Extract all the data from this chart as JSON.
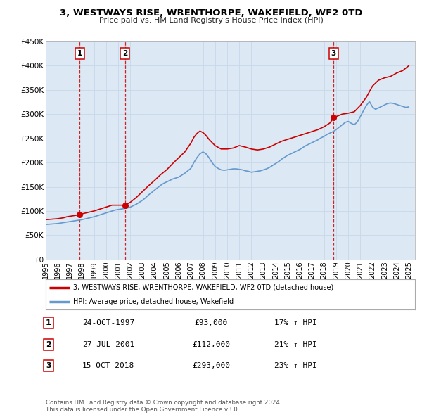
{
  "title": "3, WESTWAYS RISE, WRENTHORPE, WAKEFIELD, WF2 0TD",
  "subtitle": "Price paid vs. HM Land Registry's House Price Index (HPI)",
  "background_color": "#ffffff",
  "plot_bg_color": "#dce9f5",
  "grid_color": "#c8d8e8",
  "xmin": 1995.0,
  "xmax": 2025.5,
  "ymin": 0,
  "ymax": 450000,
  "yticks": [
    0,
    50000,
    100000,
    150000,
    200000,
    250000,
    300000,
    350000,
    400000,
    450000
  ],
  "ytick_labels": [
    "£0",
    "£50K",
    "£100K",
    "£150K",
    "£200K",
    "£250K",
    "£300K",
    "£350K",
    "£400K",
    "£450K"
  ],
  "xticks": [
    1995,
    1996,
    1997,
    1998,
    1999,
    2000,
    2001,
    2002,
    2003,
    2004,
    2005,
    2006,
    2007,
    2008,
    2009,
    2010,
    2011,
    2012,
    2013,
    2014,
    2015,
    2016,
    2017,
    2018,
    2019,
    2020,
    2021,
    2022,
    2023,
    2024,
    2025
  ],
  "sale_dates": [
    1997.81,
    2001.56,
    2018.79
  ],
  "sale_prices": [
    93000,
    112000,
    293000
  ],
  "sale_labels": [
    "1",
    "2",
    "3"
  ],
  "vline_color": "#cc0000",
  "vline_style": "--",
  "sale_dot_color": "#cc0000",
  "label_box_color": "#ffffff",
  "label_box_edge": "#cc0000",
  "legend_label_red": "3, WESTWAYS RISE, WRENTHORPE, WAKEFIELD, WF2 0TD (detached house)",
  "legend_label_blue": "HPI: Average price, detached house, Wakefield",
  "table_rows": [
    {
      "num": "1",
      "date": "24-OCT-1997",
      "price": "£93,000",
      "hpi": "17% ↑ HPI"
    },
    {
      "num": "2",
      "date": "27-JUL-2001",
      "price": "£112,000",
      "hpi": "21% ↑ HPI"
    },
    {
      "num": "3",
      "date": "15-OCT-2018",
      "price": "£293,000",
      "hpi": "23% ↑ HPI"
    }
  ],
  "footer": "Contains HM Land Registry data © Crown copyright and database right 2024.\nThis data is licensed under the Open Government Licence v3.0.",
  "red_line_color": "#cc0000",
  "blue_line_color": "#6699cc",
  "hpi_x": [
    1995.0,
    1995.25,
    1995.5,
    1995.75,
    1996.0,
    1996.25,
    1996.5,
    1996.75,
    1997.0,
    1997.25,
    1997.5,
    1997.75,
    1998.0,
    1998.25,
    1998.5,
    1998.75,
    1999.0,
    1999.25,
    1999.5,
    1999.75,
    2000.0,
    2000.25,
    2000.5,
    2000.75,
    2001.0,
    2001.25,
    2001.5,
    2001.75,
    2002.0,
    2002.25,
    2002.5,
    2002.75,
    2003.0,
    2003.25,
    2003.5,
    2003.75,
    2004.0,
    2004.25,
    2004.5,
    2004.75,
    2005.0,
    2005.25,
    2005.5,
    2005.75,
    2006.0,
    2006.25,
    2006.5,
    2006.75,
    2007.0,
    2007.25,
    2007.5,
    2007.75,
    2008.0,
    2008.25,
    2008.5,
    2008.75,
    2009.0,
    2009.25,
    2009.5,
    2009.75,
    2010.0,
    2010.25,
    2010.5,
    2010.75,
    2011.0,
    2011.25,
    2011.5,
    2011.75,
    2012.0,
    2012.25,
    2012.5,
    2012.75,
    2013.0,
    2013.25,
    2013.5,
    2013.75,
    2014.0,
    2014.25,
    2014.5,
    2014.75,
    2015.0,
    2015.25,
    2015.5,
    2015.75,
    2016.0,
    2016.25,
    2016.5,
    2016.75,
    2017.0,
    2017.25,
    2017.5,
    2017.75,
    2018.0,
    2018.25,
    2018.5,
    2018.75,
    2019.0,
    2019.25,
    2019.5,
    2019.75,
    2020.0,
    2020.25,
    2020.5,
    2020.75,
    2021.0,
    2021.25,
    2021.5,
    2021.75,
    2022.0,
    2022.25,
    2022.5,
    2022.75,
    2023.0,
    2023.25,
    2023.5,
    2023.75,
    2024.0,
    2024.25,
    2024.5,
    2024.75,
    2025.0
  ],
  "hpi_y": [
    72000,
    72500,
    73000,
    73500,
    74000,
    75000,
    76000,
    77000,
    78000,
    79000,
    80000,
    81000,
    82000,
    83500,
    85000,
    86500,
    88000,
    90000,
    92000,
    94000,
    96000,
    98000,
    100000,
    102000,
    103000,
    104000,
    105000,
    106000,
    108000,
    111000,
    114000,
    118000,
    122000,
    127000,
    133000,
    138000,
    143000,
    148000,
    153000,
    157000,
    160000,
    163000,
    166000,
    168000,
    170000,
    174000,
    178000,
    183000,
    188000,
    200000,
    210000,
    218000,
    222000,
    218000,
    210000,
    200000,
    192000,
    188000,
    185000,
    184000,
    185000,
    186000,
    187000,
    187000,
    186000,
    185000,
    183000,
    182000,
    180000,
    181000,
    182000,
    183000,
    185000,
    187000,
    190000,
    194000,
    198000,
    202000,
    207000,
    211000,
    215000,
    218000,
    221000,
    224000,
    227000,
    231000,
    235000,
    238000,
    241000,
    244000,
    247000,
    251000,
    254000,
    258000,
    261000,
    264000,
    268000,
    273000,
    278000,
    283000,
    285000,
    281000,
    278000,
    284000,
    295000,
    307000,
    318000,
    326000,
    315000,
    310000,
    313000,
    316000,
    319000,
    322000,
    323000,
    322000,
    320000,
    318000,
    316000,
    314000,
    315000
  ],
  "red_x": [
    1995.0,
    1995.25,
    1995.5,
    1995.75,
    1996.0,
    1996.25,
    1996.5,
    1996.75,
    1997.0,
    1997.25,
    1997.5,
    1997.75,
    1997.81,
    1998.0,
    1998.5,
    1999.0,
    1999.5,
    2000.0,
    2000.5,
    2001.0,
    2001.5,
    2001.56,
    2002.0,
    2002.5,
    2003.0,
    2003.5,
    2004.0,
    2004.5,
    2005.0,
    2005.5,
    2006.0,
    2006.5,
    2007.0,
    2007.25,
    2007.5,
    2007.75,
    2008.0,
    2008.25,
    2008.5,
    2009.0,
    2009.5,
    2010.0,
    2010.5,
    2011.0,
    2011.5,
    2012.0,
    2012.5,
    2013.0,
    2013.5,
    2014.0,
    2014.5,
    2015.0,
    2015.5,
    2016.0,
    2016.5,
    2017.0,
    2017.5,
    2018.0,
    2018.5,
    2018.79,
    2019.0,
    2019.5,
    2020.0,
    2020.5,
    2021.0,
    2021.5,
    2022.0,
    2022.5,
    2023.0,
    2023.5,
    2024.0,
    2024.5,
    2025.0
  ],
  "red_y": [
    82000,
    82500,
    83000,
    83500,
    84000,
    85000,
    86000,
    88000,
    89000,
    90000,
    91000,
    92500,
    93000,
    94000,
    97000,
    100000,
    104000,
    108000,
    112000,
    112000,
    112000,
    112000,
    118000,
    128000,
    140000,
    152000,
    163000,
    175000,
    185000,
    198000,
    210000,
    222000,
    240000,
    252000,
    260000,
    265000,
    262000,
    256000,
    248000,
    235000,
    228000,
    228000,
    230000,
    235000,
    232000,
    228000,
    226000,
    228000,
    232000,
    238000,
    244000,
    248000,
    252000,
    256000,
    260000,
    264000,
    268000,
    274000,
    282000,
    293000,
    295000,
    300000,
    302000,
    305000,
    318000,
    335000,
    358000,
    370000,
    375000,
    378000,
    385000,
    390000,
    400000
  ]
}
